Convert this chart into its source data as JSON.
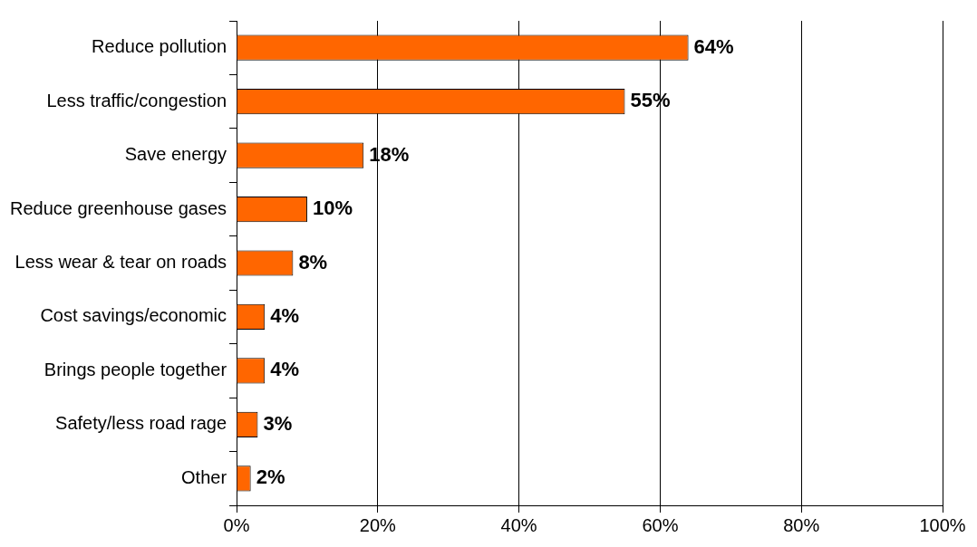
{
  "chart_data": {
    "type": "bar",
    "orientation": "horizontal",
    "categories": [
      "Reduce pollution",
      "Less traffic/congestion",
      "Save energy",
      "Reduce greenhouse gases",
      "Less wear & tear on roads",
      "Cost savings/economic",
      "Brings people together",
      "Safety/less road rage",
      "Other"
    ],
    "values": [
      64,
      55,
      18,
      10,
      8,
      4,
      4,
      3,
      2
    ],
    "value_labels": [
      "64%",
      "55%",
      "18%",
      "10%",
      "8%",
      "4%",
      "4%",
      "3%",
      "2%"
    ],
    "color": "#ff6600",
    "xlim": [
      0,
      100
    ],
    "xticks": [
      {
        "value": 0,
        "label": "0%"
      },
      {
        "value": 20,
        "label": "20%"
      },
      {
        "value": 40,
        "label": "40%"
      },
      {
        "value": 60,
        "label": "60%"
      },
      {
        "value": 80,
        "label": "80%"
      },
      {
        "value": 100,
        "label": "100%"
      }
    ],
    "grid": "x",
    "legend": false
  }
}
